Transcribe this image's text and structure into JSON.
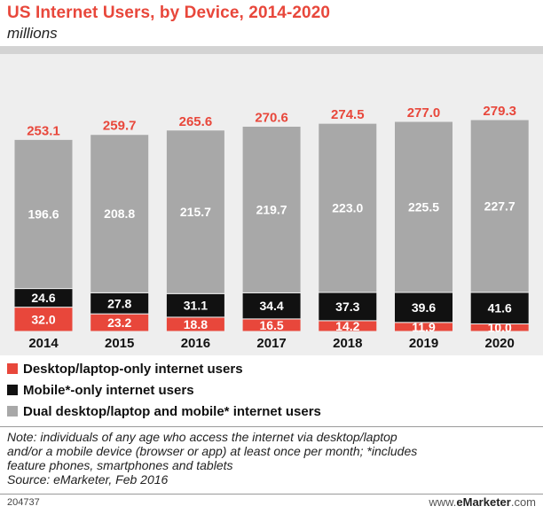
{
  "chart_data": {
    "type": "bar",
    "stacked": true,
    "title": "US Internet Users, by Device, 2014-2020",
    "subtitle": "millions",
    "categories": [
      "2014",
      "2015",
      "2016",
      "2017",
      "2018",
      "2019",
      "2020"
    ],
    "totals": [
      "253.1",
      "259.7",
      "265.6",
      "270.6",
      "274.5",
      "277.0",
      "279.3"
    ],
    "series": [
      {
        "name": "Desktop/laptop-only internet users",
        "color": "#e8473b",
        "label_color": "#ffffff",
        "values": [
          32.0,
          23.2,
          18.8,
          16.5,
          14.2,
          11.9,
          10.0
        ],
        "labels": [
          "32.0",
          "23.2",
          "18.8",
          "16.5",
          "14.2",
          "11.9",
          "10.0"
        ]
      },
      {
        "name": "Mobile*-only internet users",
        "color": "#111111",
        "label_color": "#ffffff",
        "values": [
          24.6,
          27.8,
          31.1,
          34.4,
          37.3,
          39.6,
          41.6
        ],
        "labels": [
          "24.6",
          "27.8",
          "31.1",
          "34.4",
          "37.3",
          "39.6",
          "41.6"
        ]
      },
      {
        "name": "Dual desktop/laptop and mobile* internet users",
        "color": "#a8a8a8",
        "label_color": "#ffffff",
        "values": [
          196.6,
          208.8,
          215.7,
          219.7,
          223.0,
          225.5,
          227.7
        ],
        "labels": [
          "196.6",
          "208.8",
          "215.7",
          "219.7",
          "223.0",
          "225.5",
          "227.7"
        ]
      }
    ],
    "total_label_color": "#e8473b",
    "legend_position": "bottom-left",
    "grid": false
  },
  "note": {
    "line1": "Note: individuals of any age who access the internet via desktop/laptop",
    "line2": "and/or a mobile device (browser or app) at least once per month; *includes",
    "line3": "feature phones, smartphones and tablets",
    "line4": "Source: eMarketer, Feb 2016"
  },
  "footer": {
    "id": "204737",
    "brand_prefix": "www.",
    "brand_e": "e",
    "brand_name": "Marketer",
    "brand_suffix": ".com"
  }
}
